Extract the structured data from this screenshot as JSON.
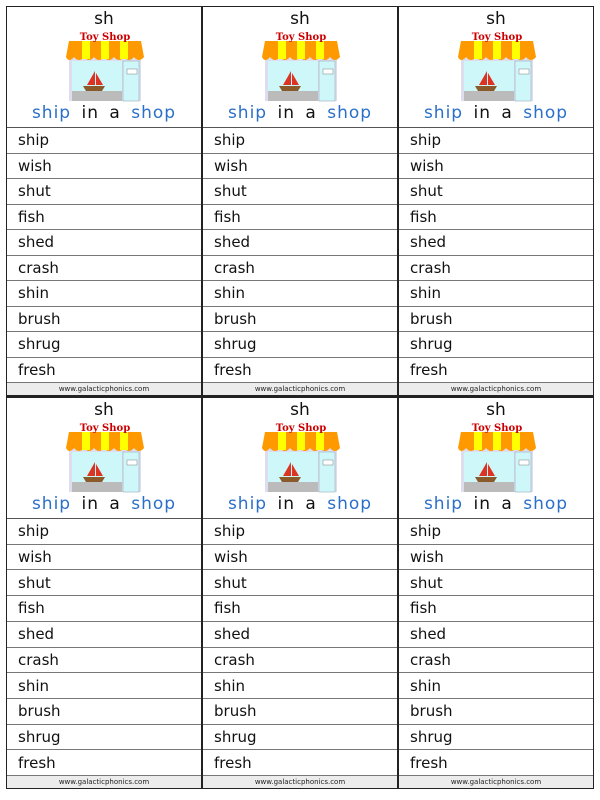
{
  "card": {
    "sound": "sh",
    "shop_sign": "Toy Shop",
    "phrase": [
      {
        "text": "ship",
        "highlight": true
      },
      {
        "text": " in a ",
        "highlight": false
      },
      {
        "text": "shop",
        "highlight": true
      }
    ],
    "words": [
      "ship",
      "wish",
      "shut",
      "fish",
      "shed",
      "crash",
      "shin",
      "brush",
      "shrug",
      "fresh"
    ],
    "footer": "www.galacticphonics.com"
  },
  "card_count": 6,
  "colors": {
    "highlight": "#2a6fc9",
    "awning_orange": "#ff9900",
    "awning_yellow": "#ffff00",
    "sign_text": "#cc0000"
  }
}
